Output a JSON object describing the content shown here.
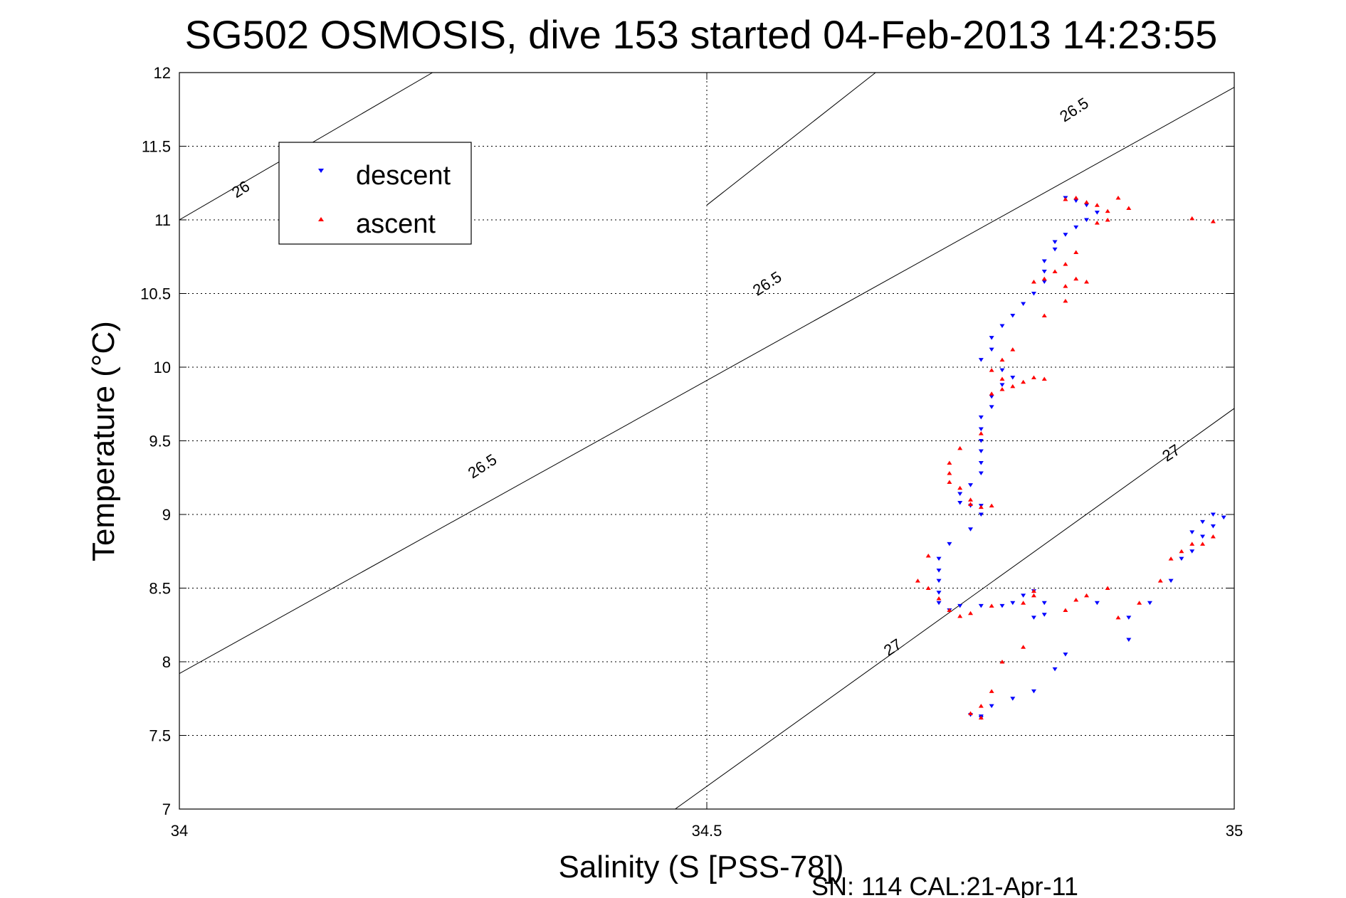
{
  "chart_data": {
    "type": "scatter",
    "title": "SG502 OSMOSIS, dive 153 started 04-Feb-2013 14:23:55",
    "xlabel": "Salinity (S [PSS-78])",
    "ylabel": "Temperature (°C)",
    "footer": "SN: 114  CAL:21-Apr-11",
    "xlim": [
      34,
      35
    ],
    "ylim": [
      7,
      12
    ],
    "xticks": [
      "34",
      "34.5",
      "35"
    ],
    "xtick_values": [
      34,
      34.5,
      35
    ],
    "yticks": [
      "7",
      "7.5",
      "8",
      "8.5",
      "9",
      "9.5",
      "10",
      "10.5",
      "11",
      "11.5",
      "12"
    ],
    "ytick_values": [
      7,
      7.5,
      8,
      8.5,
      9,
      9.5,
      10,
      10.5,
      11,
      11.5,
      12
    ],
    "grid": true,
    "legend_position": "top-left",
    "series": [
      {
        "name": "descent",
        "color": "#0000ff",
        "marker": "triangle-down",
        "points": [
          [
            34.84,
            11.15
          ],
          [
            34.85,
            11.13
          ],
          [
            34.86,
            11.1
          ],
          [
            34.87,
            11.05
          ],
          [
            34.86,
            11.0
          ],
          [
            34.85,
            10.95
          ],
          [
            34.84,
            10.9
          ],
          [
            34.83,
            10.85
          ],
          [
            34.83,
            10.8
          ],
          [
            34.82,
            10.72
          ],
          [
            34.82,
            10.65
          ],
          [
            34.82,
            10.58
          ],
          [
            34.81,
            10.5
          ],
          [
            34.8,
            10.43
          ],
          [
            34.79,
            10.35
          ],
          [
            34.78,
            10.28
          ],
          [
            34.77,
            10.2
          ],
          [
            34.77,
            10.12
          ],
          [
            34.76,
            10.05
          ],
          [
            34.78,
            9.98
          ],
          [
            34.79,
            9.93
          ],
          [
            34.78,
            9.88
          ],
          [
            34.77,
            9.8
          ],
          [
            34.77,
            9.73
          ],
          [
            34.76,
            9.66
          ],
          [
            34.76,
            9.58
          ],
          [
            34.76,
            9.5
          ],
          [
            34.76,
            9.43
          ],
          [
            34.76,
            9.35
          ],
          [
            34.76,
            9.28
          ],
          [
            34.75,
            9.2
          ],
          [
            34.74,
            9.14
          ],
          [
            34.74,
            9.08
          ],
          [
            34.75,
            9.06
          ],
          [
            34.76,
            9.06
          ],
          [
            34.76,
            9.0
          ],
          [
            34.75,
            8.9
          ],
          [
            34.73,
            8.8
          ],
          [
            34.72,
            8.7
          ],
          [
            34.72,
            8.62
          ],
          [
            34.72,
            8.55
          ],
          [
            34.72,
            8.47
          ],
          [
            34.72,
            8.4
          ],
          [
            34.73,
            8.35
          ],
          [
            34.74,
            8.38
          ],
          [
            34.76,
            8.38
          ],
          [
            34.78,
            8.38
          ],
          [
            34.79,
            8.4
          ],
          [
            34.8,
            8.45
          ],
          [
            34.81,
            8.48
          ],
          [
            34.82,
            8.4
          ],
          [
            34.81,
            8.3
          ],
          [
            34.82,
            8.32
          ],
          [
            34.87,
            8.4
          ],
          [
            34.9,
            8.3
          ],
          [
            34.92,
            8.4
          ],
          [
            34.94,
            8.55
          ],
          [
            34.95,
            8.7
          ],
          [
            34.96,
            8.75
          ],
          [
            34.97,
            8.85
          ],
          [
            34.98,
            8.92
          ],
          [
            34.99,
            8.98
          ],
          [
            34.98,
            9.0
          ],
          [
            34.97,
            8.95
          ],
          [
            34.96,
            8.88
          ],
          [
            34.9,
            8.15
          ],
          [
            34.84,
            8.05
          ],
          [
            34.83,
            7.95
          ],
          [
            34.81,
            7.8
          ],
          [
            34.79,
            7.75
          ],
          [
            34.77,
            7.7
          ],
          [
            34.76,
            7.63
          ],
          [
            34.76,
            7.62
          ],
          [
            34.75,
            7.64
          ]
        ]
      },
      {
        "name": "ascent",
        "color": "#ff0000",
        "marker": "triangle-up",
        "points": [
          [
            34.84,
            11.14
          ],
          [
            34.85,
            11.15
          ],
          [
            34.86,
            11.12
          ],
          [
            34.87,
            11.1
          ],
          [
            34.88,
            11.06
          ],
          [
            34.88,
            11.0
          ],
          [
            34.89,
            11.15
          ],
          [
            34.9,
            11.08
          ],
          [
            34.87,
            10.98
          ],
          [
            34.85,
            10.78
          ],
          [
            34.84,
            10.7
          ],
          [
            34.83,
            10.65
          ],
          [
            34.82,
            10.6
          ],
          [
            34.81,
            10.58
          ],
          [
            34.84,
            10.55
          ],
          [
            34.85,
            10.6
          ],
          [
            34.86,
            10.58
          ],
          [
            34.84,
            10.45
          ],
          [
            34.82,
            10.35
          ],
          [
            34.79,
            10.12
          ],
          [
            34.78,
            10.05
          ],
          [
            34.77,
            9.98
          ],
          [
            34.78,
            9.92
          ],
          [
            34.8,
            9.9
          ],
          [
            34.81,
            9.93
          ],
          [
            34.82,
            9.92
          ],
          [
            34.79,
            9.87
          ],
          [
            34.78,
            9.85
          ],
          [
            34.77,
            9.82
          ],
          [
            34.76,
            9.55
          ],
          [
            34.74,
            9.45
          ],
          [
            34.73,
            9.35
          ],
          [
            34.73,
            9.28
          ],
          [
            34.73,
            9.22
          ],
          [
            34.74,
            9.18
          ],
          [
            34.75,
            9.1
          ],
          [
            34.75,
            9.07
          ],
          [
            34.76,
            9.05
          ],
          [
            34.77,
            9.06
          ],
          [
            34.71,
            8.72
          ],
          [
            34.7,
            8.55
          ],
          [
            34.71,
            8.5
          ],
          [
            34.72,
            8.43
          ],
          [
            34.73,
            8.35
          ],
          [
            34.74,
            8.31
          ],
          [
            34.75,
            8.33
          ],
          [
            34.77,
            8.38
          ],
          [
            34.8,
            8.4
          ],
          [
            34.81,
            8.45
          ],
          [
            34.81,
            8.48
          ],
          [
            34.85,
            8.42
          ],
          [
            34.86,
            8.45
          ],
          [
            34.88,
            8.5
          ],
          [
            34.91,
            8.4
          ],
          [
            34.93,
            8.55
          ],
          [
            34.94,
            8.7
          ],
          [
            34.95,
            8.75
          ],
          [
            34.96,
            8.8
          ],
          [
            34.97,
            8.8
          ],
          [
            34.98,
            8.85
          ],
          [
            34.89,
            8.3
          ],
          [
            34.84,
            8.35
          ],
          [
            34.8,
            8.1
          ],
          [
            34.78,
            8.0
          ],
          [
            34.77,
            7.8
          ],
          [
            34.76,
            7.7
          ],
          [
            34.75,
            7.65
          ],
          [
            34.76,
            7.62
          ],
          [
            34.96,
            11.01
          ],
          [
            34.98,
            10.99
          ]
        ]
      }
    ],
    "isopycnals": [
      {
        "label": "26",
        "points": [
          [
            34.0,
            11.0
          ],
          [
            34.24,
            12.0
          ]
        ],
        "label_at": [
          34.06,
          11.2
        ]
      },
      {
        "label": "26.5",
        "points": [
          [
            34.0,
            7.92
          ],
          [
            35.0,
            11.9
          ]
        ],
        "labels_at": [
          [
            34.29,
            9.35
          ],
          [
            34.56,
            10.56
          ]
        ]
      },
      {
        "label": "26.5",
        "points": [
          [
            34.66,
            12.0
          ],
          [
            34.5,
            11.1
          ]
        ],
        "labels_at": []
      },
      {
        "label": "27",
        "points": [
          [
            34.47,
            7.0
          ],
          [
            35.0,
            9.72
          ]
        ],
        "labels_at": [
          [
            34.68,
            8.1
          ],
          [
            34.94,
            9.42
          ]
        ]
      }
    ],
    "isopycnal_label_spots": [
      {
        "text": "26",
        "at": [
          34.058,
          11.21
        ]
      },
      {
        "text": "26.5",
        "at": [
          34.287,
          9.33
        ]
      },
      {
        "text": "26.5",
        "at": [
          34.557,
          10.57
        ]
      },
      {
        "text": "26.5",
        "at": [
          34.848,
          11.75
        ]
      },
      {
        "text": "27",
        "at": [
          34.676,
          8.1
        ]
      },
      {
        "text": "27",
        "at": [
          34.94,
          9.42
        ]
      }
    ]
  }
}
